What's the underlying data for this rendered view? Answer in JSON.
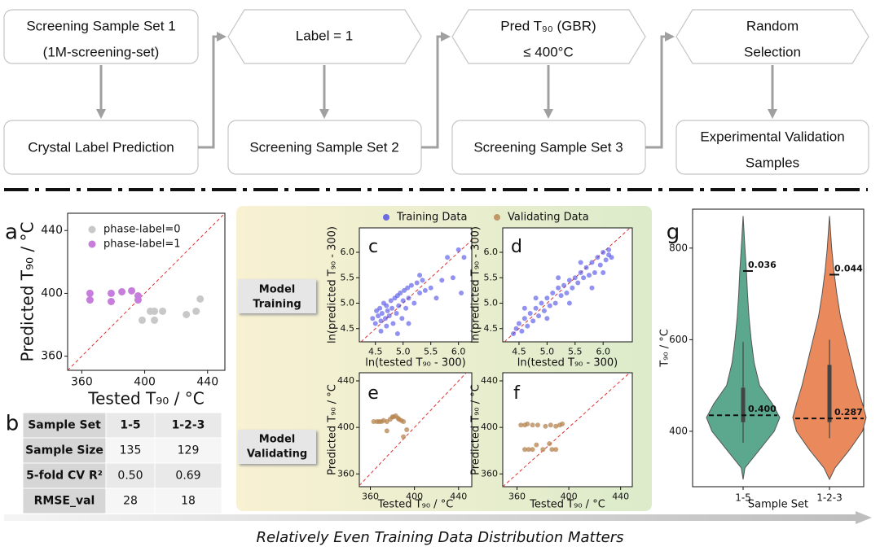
{
  "flowchart": {
    "nodes": [
      {
        "lines": [
          "Screening Sample Set 1",
          "(1M-screening-set)"
        ]
      },
      {
        "lines": [
          "Label = 1"
        ]
      },
      {
        "lines": [
          "Pred T₉₀ (GBR)",
          "≤ 400°C"
        ]
      },
      {
        "lines": [
          "Random",
          "Selection"
        ]
      },
      {
        "lines": [
          "Crystal Label Prediction"
        ]
      },
      {
        "lines": [
          "Screening Sample Set 2"
        ]
      },
      {
        "lines": [
          "Screening Sample Set 3"
        ]
      },
      {
        "lines": [
          "Experimental Validation",
          "Samples"
        ]
      }
    ]
  },
  "chart_data": [
    {
      "type": "scatter",
      "panel": "a",
      "xlabel": "Tested T₉₀ / °C",
      "ylabel": "Predicted T₉₀ / °C",
      "xlim": [
        351,
        451
      ],
      "ylim": [
        351,
        451
      ],
      "xticks": [
        360,
        400,
        440
      ],
      "yticks": [
        360,
        400,
        440
      ],
      "diagonal": true,
      "legend": "upper left",
      "series": [
        {
          "name": "phase-label=0",
          "color": "#c8c8c8",
          "x": [
            398.4,
            403.6,
            406.2,
            411.4,
            406.2,
            426.5,
            432.7,
            435.3
          ],
          "values": [
            382.9,
            388.6,
            388.6,
            388.6,
            382.9,
            386.5,
            388.6,
            396.4
          ]
        },
        {
          "name": "phase-label=1",
          "color": "#c77ddb",
          "x": [
            365.2,
            365.2,
            378.7,
            378.7,
            385.5,
            391.7,
            395.8,
            395.8
          ],
          "values": [
            400,
            395.8,
            400,
            394.8,
            401,
            401.6,
            398.4,
            395.8
          ]
        }
      ]
    },
    {
      "type": "scatter",
      "panel": "c",
      "xlabel": "ln(tested T₉₀ - 300)",
      "ylabel": "ln(predicted T₉₀ - 300)",
      "xlim": [
        4.21,
        6.24
      ],
      "ylim": [
        4.24,
        6.48
      ],
      "xticks": [
        4.5,
        {
          "value": 5,
          "label": "5.0"
        },
        5.5,
        {
          "value": 6,
          "label": "6.0"
        }
      ],
      "yticks": [
        4.5,
        {
          "value": 5,
          "label": "5.0"
        },
        5.5,
        {
          "value": 6,
          "label": "6.0"
        }
      ],
      "diagonal": true,
      "series": [
        {
          "name": "Training Data",
          "color": "#4a4ae8",
          "x": [
            4.45,
            4.5,
            4.52,
            4.55,
            4.58,
            4.6,
            4.62,
            4.65,
            4.68,
            4.7,
            4.72,
            4.75,
            4.78,
            4.8,
            4.82,
            4.85,
            4.88,
            4.9,
            4.92,
            4.95,
            4.98,
            5.0,
            5.02,
            5.05,
            5.08,
            5.1,
            5.15,
            5.2,
            5.25,
            5.3,
            5.35,
            5.4,
            5.5,
            5.6,
            5.7,
            5.8,
            5.9,
            6.0,
            6.1,
            6.05,
            4.6,
            4.7,
            4.9,
            5.1,
            5.3
          ],
          "values": [
            4.7,
            4.6,
            4.85,
            4.75,
            4.9,
            4.65,
            4.8,
            5.0,
            4.7,
            4.95,
            4.85,
            4.75,
            5.05,
            4.9,
            4.6,
            5.1,
            4.8,
            5.15,
            4.95,
            5.2,
            4.7,
            5.05,
            5.25,
            4.9,
            5.3,
            5.1,
            5.35,
            5.0,
            5.4,
            5.2,
            5.45,
            5.25,
            5.3,
            5.1,
            5.45,
            5.9,
            5.5,
            6.05,
            5.9,
            5.2,
            4.45,
            4.55,
            4.4,
            4.6,
            5.55
          ]
        }
      ]
    },
    {
      "type": "scatter",
      "panel": "d",
      "xlabel": "ln(tested T₉₀ - 300)",
      "ylabel": "ln(predicted T₉₀ - 300)",
      "xlim": [
        4.21,
        6.52
      ],
      "ylim": [
        4.24,
        6.48
      ],
      "xticks": [
        4.5,
        {
          "value": 5,
          "label": "5.0"
        },
        5.5,
        {
          "value": 6,
          "label": "6.0"
        }
      ],
      "yticks": [
        4.5,
        {
          "value": 5,
          "label": "5.0"
        },
        5.5,
        {
          "value": 6,
          "label": "6.0"
        }
      ],
      "diagonal": true,
      "series": [
        {
          "name": "Training Data",
          "color": "#4a4ae8",
          "x": [
            4.4,
            4.45,
            4.5,
            4.55,
            4.6,
            4.65,
            4.7,
            4.75,
            4.8,
            4.85,
            4.9,
            4.95,
            5.0,
            5.05,
            5.1,
            5.15,
            5.2,
            5.25,
            5.3,
            5.35,
            5.4,
            5.45,
            5.5,
            5.55,
            5.6,
            5.65,
            5.7,
            5.75,
            5.8,
            5.85,
            5.9,
            5.95,
            6.0,
            6.05,
            6.1,
            6.15,
            4.6,
            4.8,
            5.0,
            5.2,
            5.4,
            5.6,
            5.8,
            6.0,
            6.1
          ],
          "values": [
            4.4,
            4.5,
            4.6,
            4.45,
            4.7,
            4.55,
            4.8,
            4.65,
            4.9,
            4.75,
            5.0,
            4.85,
            5.1,
            4.95,
            5.2,
            5.0,
            5.3,
            5.15,
            5.35,
            5.2,
            5.45,
            5.3,
            5.5,
            5.4,
            5.6,
            5.5,
            5.7,
            5.55,
            5.8,
            5.6,
            5.9,
            5.75,
            6.0,
            5.85,
            5.95,
            5.9,
            4.9,
            5.1,
            4.7,
            5.5,
            5.0,
            5.8,
            5.3,
            5.6,
            6.05
          ]
        }
      ]
    },
    {
      "type": "scatter",
      "panel": "e",
      "xlabel": "Tested T₉₀ / °C",
      "ylabel": "Predicted T₉₀ / °C",
      "xlim": [
        350,
        452
      ],
      "ylim": [
        349,
        447
      ],
      "xticks": [
        360,
        400,
        440
      ],
      "yticks": [
        360,
        400,
        440
      ],
      "diagonal": true,
      "series": [
        {
          "name": "Validating Data",
          "color": "#b5834e",
          "x": [
            363,
            366,
            368,
            370,
            372,
            375,
            378,
            380,
            383,
            385,
            388,
            390,
            393,
            375,
            390,
            386,
            381
          ],
          "values": [
            405,
            405,
            405,
            405,
            406,
            405,
            407,
            409,
            410,
            408,
            406,
            405,
            398,
            397,
            392,
            407,
            409
          ]
        }
      ]
    },
    {
      "type": "scatter",
      "panel": "f",
      "xlabel": "Tested T₉₀ / °C",
      "ylabel": "Predicted T₉₀ / °C",
      "xlim": [
        349,
        449
      ],
      "ylim": [
        349,
        447
      ],
      "xticks": [
        360,
        400,
        440
      ],
      "yticks": [
        360,
        400,
        440
      ],
      "diagonal": true,
      "series": [
        {
          "name": "Validating Data",
          "color": "#b5834e",
          "x": [
            363,
            366,
            368,
            372,
            376,
            382,
            386,
            390,
            393,
            395,
            366,
            369,
            372,
            380,
            387,
            390,
            375,
            385
          ],
          "values": [
            402,
            402,
            403,
            402,
            402,
            401,
            402,
            401,
            402,
            403,
            381,
            381,
            381,
            381,
            381,
            381,
            385,
            386
          ]
        }
      ]
    },
    {
      "type": "violin",
      "panel": "g",
      "xlabel": "Sample Set",
      "ylabel": "T₉₀ / °C",
      "categories": [
        "1-5",
        "1-2-3"
      ],
      "ylim": [
        279,
        885
      ],
      "yticks": [
        400,
        600,
        800
      ],
      "density_y": [
        295,
        320,
        360,
        400,
        430,
        460,
        500,
        550,
        600,
        650,
        700,
        750,
        800,
        870
      ],
      "series": [
        {
          "color": "#5ba88e",
          "density": [
            0,
            0.05,
            0.45,
            0.85,
            1.0,
            0.8,
            0.45,
            0.3,
            0.22,
            0.16,
            0.12,
            0.09,
            0.05,
            0
          ],
          "whisker": [
            375,
            595
          ],
          "box": [
            420,
            495
          ],
          "annotations": [
            {
              "value": 750,
              "label": "0.036",
              "style": "solid"
            },
            {
              "value": 435,
              "label": "0.400",
              "style": "dashed"
            }
          ]
        },
        {
          "color": "#ea8a5c",
          "density": [
            0,
            0.15,
            0.55,
            0.9,
            1.0,
            0.9,
            0.75,
            0.6,
            0.45,
            0.3,
            0.2,
            0.12,
            0.06,
            0
          ],
          "whisker": [
            385,
            600
          ],
          "box": [
            420,
            545
          ],
          "annotations": [
            {
              "value": 742,
              "label": "0.044",
              "style": "solid"
            },
            {
              "value": 428,
              "label": "0.287",
              "style": "dashed"
            }
          ]
        }
      ]
    }
  ],
  "table": {
    "panel": "b",
    "rows": [
      [
        "Sample Set",
        "1-5",
        "1-2-3"
      ],
      [
        "Sample Size",
        "135",
        "129"
      ],
      [
        "5-fold CV R²",
        "0.50",
        "0.69"
      ],
      [
        "RMSE_val",
        "28",
        "18"
      ]
    ]
  },
  "row_labels": [
    [
      "Model",
      "Training"
    ],
    [
      "Model",
      "Validating"
    ]
  ],
  "caption": "Relatively Even Training Data Distribution Matters"
}
